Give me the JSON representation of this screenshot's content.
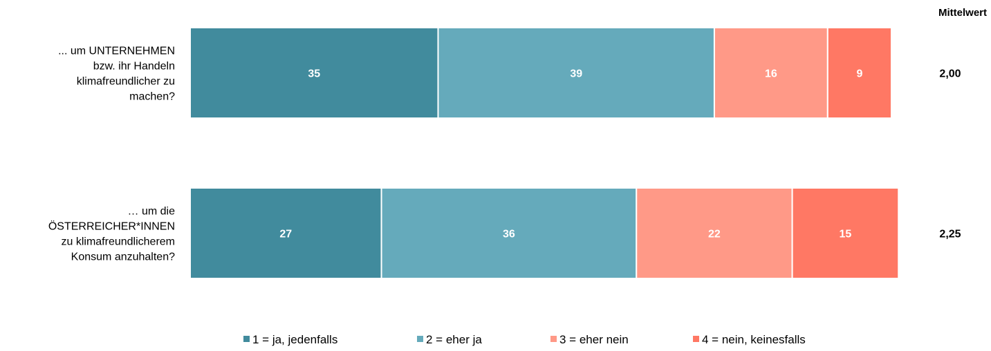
{
  "chart_data": {
    "type": "bar",
    "orientation": "horizontal",
    "stacked": true,
    "title": "",
    "xlabel": "",
    "ylabel": "",
    "xlim": [
      0,
      100
    ],
    "categories": [
      "... um UNTERNEHMEN bzw. ihr Handeln klimafreundlicher zu machen?",
      "… um die ÖSTERREICHER*INNEN zu klimafreundlicherem Konsum anzuhalten?"
    ],
    "category_lines": [
      [
        "... um UNTERNEHMEN",
        "bzw. ihr Handeln",
        "klimafreundlicher zu",
        "machen?"
      ],
      [
        "… um die",
        "ÖSTERREICHER*INNEN",
        "zu klimafreundlicherem",
        "Konsum anzuhalten?"
      ]
    ],
    "series": [
      {
        "name": "1 = ja, jedenfalls",
        "color": "#418B9D",
        "values": [
          35,
          27
        ]
      },
      {
        "name": "2 = eher ja",
        "color": "#65AABB",
        "values": [
          39,
          36
        ]
      },
      {
        "name": "3 = eher nein",
        "color": "#FF9987",
        "values": [
          16,
          22
        ]
      },
      {
        "name": "4 = nein, keinesfalls",
        "color": "#FF7864",
        "values": [
          9,
          15
        ]
      }
    ],
    "mean_header": "Mittelwert",
    "means": [
      "2,00",
      "2,25"
    ],
    "legend_position": "bottom",
    "grid": false
  }
}
